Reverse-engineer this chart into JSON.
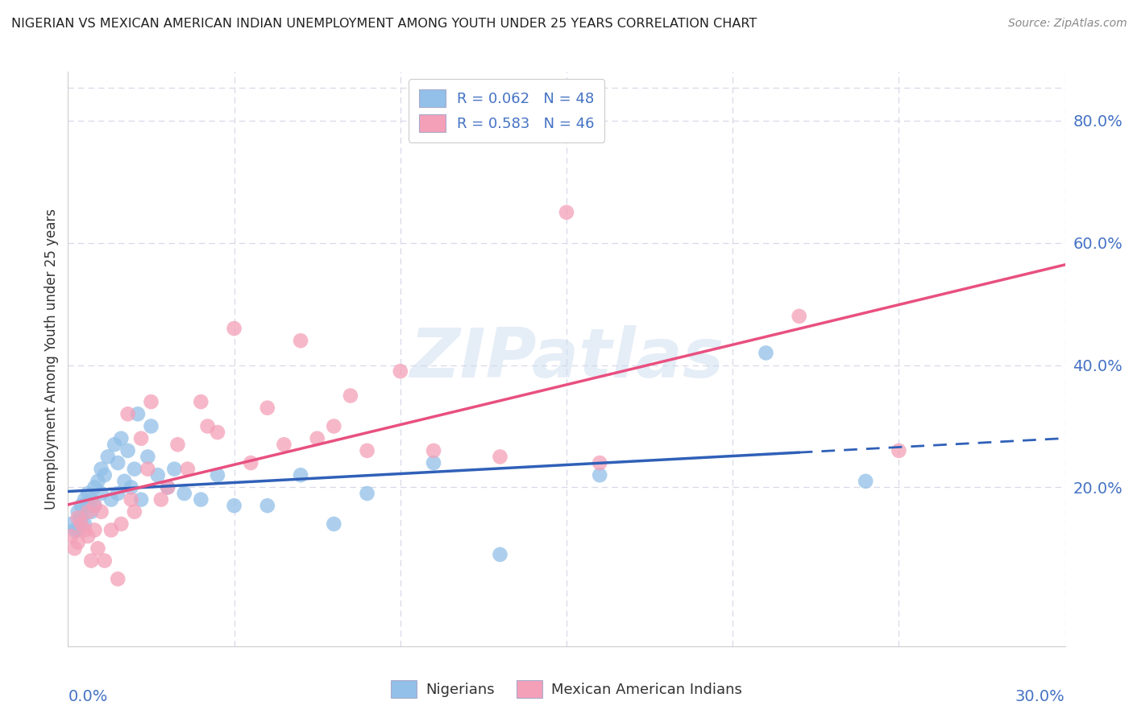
{
  "title": "NIGERIAN VS MEXICAN AMERICAN INDIAN UNEMPLOYMENT AMONG YOUTH UNDER 25 YEARS CORRELATION CHART",
  "source": "Source: ZipAtlas.com",
  "ylabel": "Unemployment Among Youth under 25 years",
  "xlim": [
    0.0,
    0.3
  ],
  "ylim": [
    -0.06,
    0.88
  ],
  "nigerian_color": "#92c0e8",
  "mexican_color": "#f4a0b8",
  "nigerian_line_color": "#3060b8",
  "mexican_line_color": "#e85080",
  "watermark_text": "ZIPatlas",
  "nigerian_x": [
    0.001,
    0.002,
    0.003,
    0.003,
    0.004,
    0.004,
    0.005,
    0.005,
    0.006,
    0.006,
    0.007,
    0.007,
    0.008,
    0.008,
    0.009,
    0.01,
    0.01,
    0.011,
    0.012,
    0.013,
    0.014,
    0.015,
    0.015,
    0.016,
    0.017,
    0.018,
    0.019,
    0.02,
    0.021,
    0.022,
    0.024,
    0.025,
    0.027,
    0.03,
    0.032,
    0.035,
    0.04,
    0.045,
    0.05,
    0.06,
    0.07,
    0.08,
    0.09,
    0.11,
    0.13,
    0.16,
    0.21,
    0.24
  ],
  "nigerian_y": [
    0.14,
    0.13,
    0.16,
    0.13,
    0.17,
    0.15,
    0.18,
    0.14,
    0.19,
    0.17,
    0.18,
    0.16,
    0.2,
    0.17,
    0.21,
    0.23,
    0.19,
    0.22,
    0.25,
    0.18,
    0.27,
    0.24,
    0.19,
    0.28,
    0.21,
    0.26,
    0.2,
    0.23,
    0.32,
    0.18,
    0.25,
    0.3,
    0.22,
    0.2,
    0.23,
    0.19,
    0.18,
    0.22,
    0.17,
    0.17,
    0.22,
    0.14,
    0.19,
    0.24,
    0.09,
    0.22,
    0.42,
    0.21
  ],
  "mexican_x": [
    0.001,
    0.002,
    0.003,
    0.003,
    0.004,
    0.005,
    0.006,
    0.006,
    0.007,
    0.008,
    0.008,
    0.009,
    0.01,
    0.011,
    0.013,
    0.015,
    0.016,
    0.018,
    0.019,
    0.02,
    0.022,
    0.024,
    0.025,
    0.028,
    0.03,
    0.033,
    0.036,
    0.04,
    0.042,
    0.045,
    0.05,
    0.055,
    0.06,
    0.065,
    0.07,
    0.075,
    0.08,
    0.085,
    0.09,
    0.1,
    0.11,
    0.13,
    0.15,
    0.16,
    0.22,
    0.25
  ],
  "mexican_y": [
    0.12,
    0.1,
    0.15,
    0.11,
    0.14,
    0.13,
    0.16,
    0.12,
    0.08,
    0.17,
    0.13,
    0.1,
    0.16,
    0.08,
    0.13,
    0.05,
    0.14,
    0.32,
    0.18,
    0.16,
    0.28,
    0.23,
    0.34,
    0.18,
    0.2,
    0.27,
    0.23,
    0.34,
    0.3,
    0.29,
    0.46,
    0.24,
    0.33,
    0.27,
    0.44,
    0.28,
    0.3,
    0.35,
    0.26,
    0.39,
    0.26,
    0.25,
    0.65,
    0.24,
    0.48,
    0.26
  ],
  "background_color": "#ffffff",
  "grid_color": "#d8d8e8",
  "axis_label_color": "#4472c4",
  "title_color": "#222222",
  "source_color": "#888888",
  "legend_box_color": "#ccccdd",
  "nigerian_R": "0.062",
  "nigerian_N": "48",
  "mexican_R": "0.583",
  "mexican_N": "46",
  "legend_text_color": "#4472c4",
  "bottom_legend_label1": "Nigerians",
  "bottom_legend_label2": "Mexican American Indians",
  "ytick_labels": [
    "20.0%",
    "40.0%",
    "60.0%",
    "80.0%"
  ],
  "ytick_values": [
    0.2,
    0.4,
    0.6,
    0.8
  ],
  "nig_line_solid_end": 0.22,
  "nig_line_dashed_start": 0.22
}
